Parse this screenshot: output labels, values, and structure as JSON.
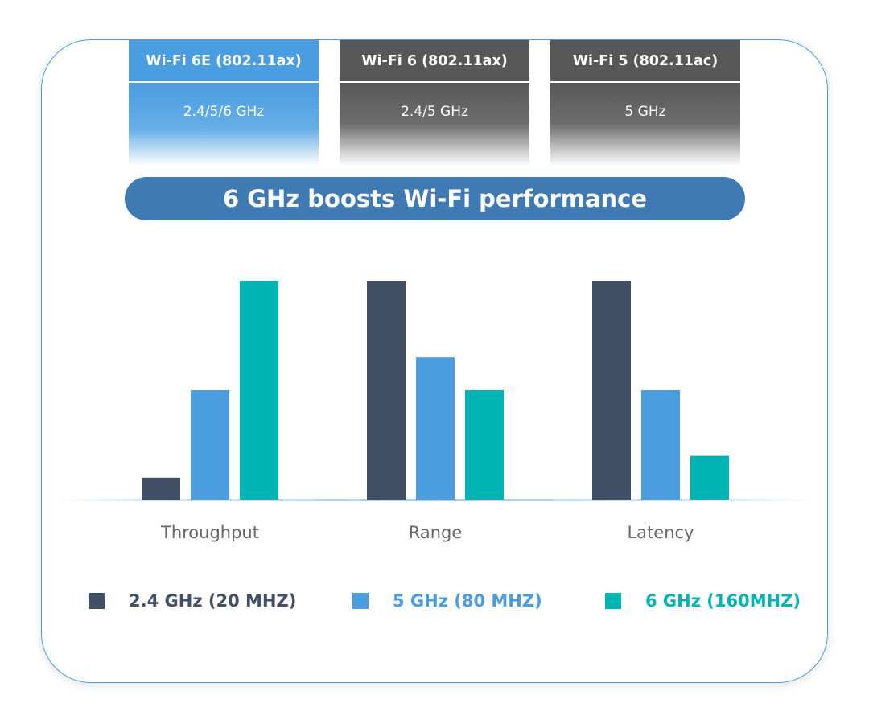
{
  "standards": [
    {
      "name": "Wi-Fi 6E (802.11ax)",
      "bands": "2.4/5/6 GHz"
    },
    {
      "name": "Wi-Fi 6 (802.11ax)",
      "bands": "2.4/5 GHz"
    },
    {
      "name": "Wi-Fi 5 (802.11ac)",
      "bands": "5 GHz"
    }
  ],
  "banner": {
    "title": "6 GHz boosts Wi-Fi performance"
  },
  "chart_data": {
    "type": "bar",
    "categories": [
      "Throughput",
      "Range",
      "Latency"
    ],
    "series": [
      {
        "name": "2.4 GHz (20 MHZ)",
        "color": "#414f67",
        "values": [
          1,
          10,
          10
        ]
      },
      {
        "name": "5 GHz (80 MHZ)",
        "color": "#4a9ee0",
        "values": [
          5,
          6.5,
          5
        ]
      },
      {
        "name": "6 GHz (160MHZ)",
        "color": "#00b4b4",
        "values": [
          10,
          5,
          2
        ]
      }
    ],
    "ylim": [
      0,
      10
    ],
    "grid": false,
    "legend_position": "bottom"
  }
}
